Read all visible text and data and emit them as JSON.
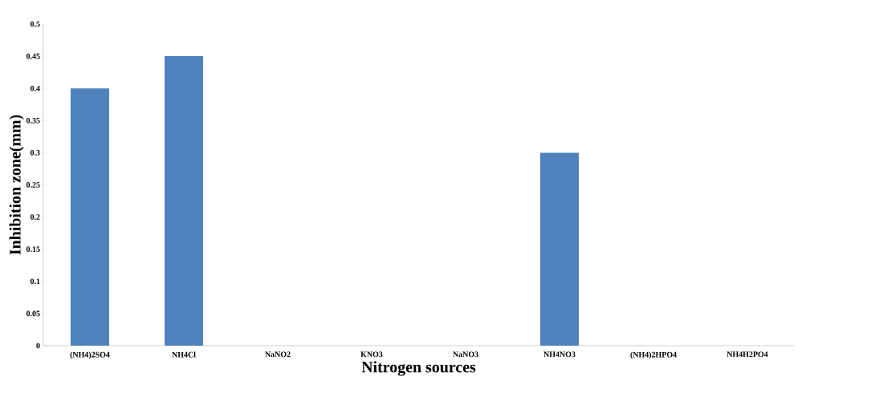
{
  "chart_data": {
    "type": "bar",
    "xlabel": "Nitrogen sources",
    "ylabel": "Inhibition zone(mm)",
    "categories": [
      "(NH4)2SO4",
      "NH4Cl",
      "NaNO2",
      "KNO3",
      "NaNO3",
      "NH4NO3",
      "(NH4)2HPO4",
      "NH4H2PO4"
    ],
    "values": [
      0.4,
      0.45,
      0,
      0,
      0,
      0.3,
      0,
      0
    ],
    "color": "#4f81bd",
    "ylim": [
      0,
      0.5
    ],
    "yticks": [
      0,
      0.05,
      0.1,
      0.15,
      0.2,
      0.25,
      0.3,
      0.35,
      0.4,
      0.45,
      0.5
    ],
    "grid": false
  }
}
